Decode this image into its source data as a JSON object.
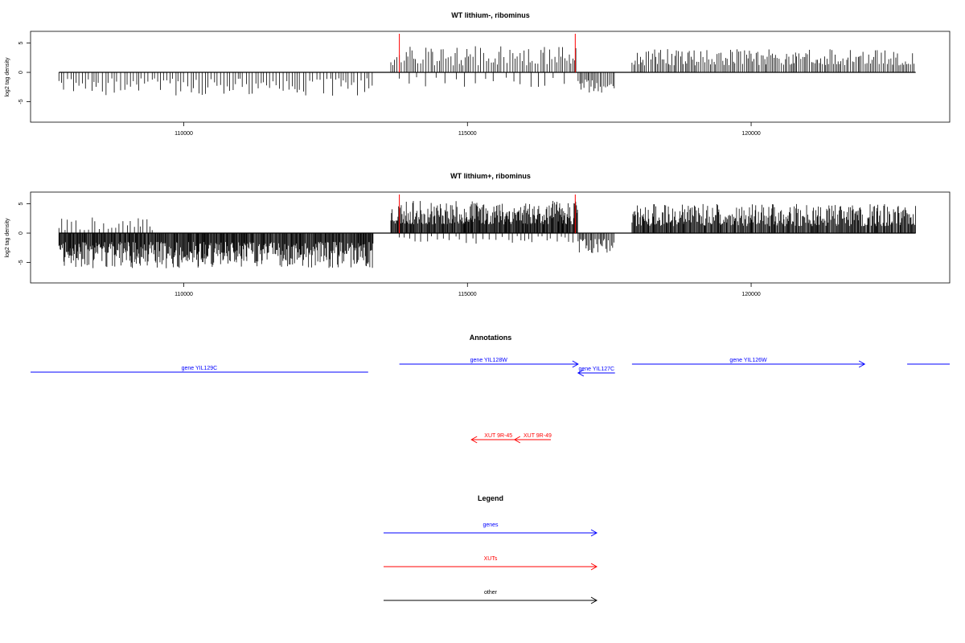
{
  "chart_data": [
    {
      "type": "bar",
      "title": "WT lithium-, ribominus",
      "ylabel": "log2 tag density",
      "xlabel": "",
      "xlim": [
        107300,
        123500
      ],
      "ylim": [
        -8.5,
        7
      ],
      "xticks": [
        110000,
        115000,
        120000
      ],
      "yticks": [
        -5,
        0,
        5
      ],
      "grid": false,
      "markers": [
        113800,
        116900
      ],
      "segments": [
        {
          "start": 107800,
          "end": 113350,
          "sign": -1,
          "spacing": 55,
          "min": 1.0,
          "max": 4.0,
          "seed": 11
        },
        {
          "start": 113650,
          "end": 116950,
          "sign": 1,
          "spacing": 40,
          "min": 1.2,
          "max": 4.5,
          "seed": 12
        },
        {
          "start": 113800,
          "end": 116800,
          "sign": -1,
          "spacing": 180,
          "min": 0.8,
          "max": 2.5,
          "seed": 13
        },
        {
          "start": 116950,
          "end": 117600,
          "sign": -1,
          "spacing": 30,
          "min": 1.0,
          "max": 4.0,
          "seed": 14
        },
        {
          "start": 117900,
          "end": 122900,
          "sign": 1,
          "spacing": 30,
          "min": 1.2,
          "max": 4.0,
          "seed": 15
        }
      ]
    },
    {
      "type": "bar",
      "title": "WT lithium+, ribominus",
      "ylabel": "log2 tag density",
      "xlabel": "",
      "xlim": [
        107300,
        123500
      ],
      "ylim": [
        -8.5,
        7
      ],
      "xticks": [
        110000,
        115000,
        120000
      ],
      "yticks": [
        -5,
        0,
        5
      ],
      "grid": false,
      "markers": [
        113800,
        116900
      ],
      "segments": [
        {
          "start": 107800,
          "end": 113350,
          "sign": -1,
          "spacing": 12,
          "min": 1.5,
          "max": 6.0,
          "seed": 21
        },
        {
          "start": 107800,
          "end": 109500,
          "sign": 1,
          "spacing": 60,
          "min": 0.5,
          "max": 2.8,
          "seed": 22
        },
        {
          "start": 113650,
          "end": 116950,
          "sign": 1,
          "spacing": 12,
          "min": 1.5,
          "max": 5.5,
          "seed": 23
        },
        {
          "start": 113800,
          "end": 116900,
          "sign": -1,
          "spacing": 90,
          "min": 0.5,
          "max": 2.0,
          "seed": 24
        },
        {
          "start": 116950,
          "end": 117600,
          "sign": -1,
          "spacing": 20,
          "min": 1.0,
          "max": 3.5,
          "seed": 25
        },
        {
          "start": 117900,
          "end": 122900,
          "sign": 1,
          "spacing": 14,
          "min": 1.2,
          "max": 5.0,
          "seed": 26
        }
      ]
    }
  ],
  "annotations": {
    "title": "Annotations",
    "genes": [
      {
        "label": "gene YIL129C",
        "start": 107300,
        "end": 113250,
        "row": 2,
        "dir": "none"
      },
      {
        "label": "gene YIL128W",
        "start": 113800,
        "end": 116950,
        "row": 0,
        "dir": "right"
      },
      {
        "label": "gene YIL127C",
        "start": 116950,
        "end": 117600,
        "row": 1,
        "dir": "left"
      },
      {
        "label": "gene YIL126W",
        "start": 117900,
        "end": 122000,
        "row": 0,
        "dir": "right"
      },
      {
        "label": "",
        "start": 122750,
        "end": 123500,
        "row": 0,
        "dir": "none"
      }
    ],
    "xuts": [
      {
        "label": "XUT 9R-45",
        "start": 115070,
        "end": 115850,
        "dir": "left"
      },
      {
        "label": "XUT 9R-49",
        "start": 115830,
        "end": 116470,
        "dir": "left"
      }
    ],
    "gene_color": "#0000ff",
    "xut_color": "#ff0000"
  },
  "legend": {
    "title": "Legend",
    "items": [
      {
        "label": "genes",
        "color": "#0000ff"
      },
      {
        "label": "XUTs",
        "color": "#ff0000"
      },
      {
        "label": "other",
        "color": "#000000"
      }
    ]
  }
}
